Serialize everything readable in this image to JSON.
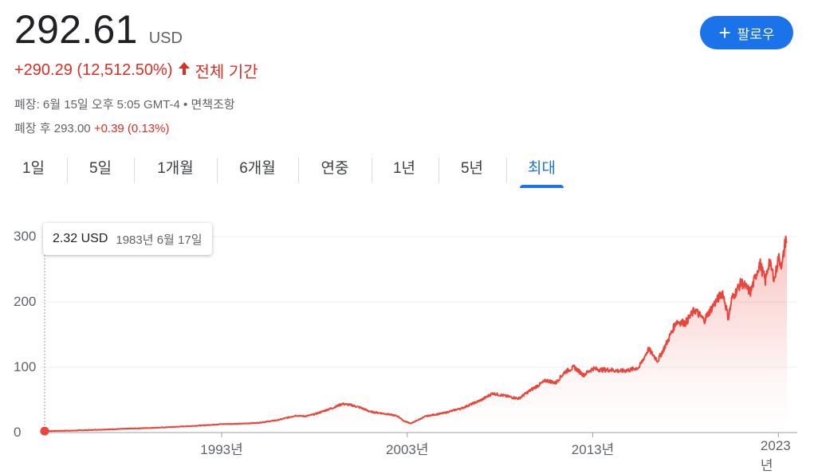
{
  "quote": {
    "price": "292.61",
    "currency": "USD",
    "change": "+290.29",
    "change_pct": "(12,512.50%)",
    "arrow": "up-arrow-icon",
    "period": "전체 기간",
    "close_info": "폐장: 6월 15일 오후 5:05 GMT-4",
    "separator": "•",
    "disclaimer": "면책조항",
    "after_hours_label": "폐장 후",
    "after_hours_price": "293.00",
    "after_hours_change": "+0.39 (0.13%)"
  },
  "follow_button": {
    "icon": "plus-icon",
    "label": "팔로우"
  },
  "tabs": [
    "1일",
    "5일",
    "1개월",
    "6개월",
    "연중",
    "1년",
    "5년",
    "최대"
  ],
  "active_tab": "최대",
  "tooltip": {
    "value": "2.32 USD",
    "date": "1983년 6월 17일"
  },
  "colors": {
    "line": "#e8453c",
    "accent": "#1a73e8",
    "negative_positive": "#d93025",
    "grid": "#eeeeee"
  },
  "chart_data": {
    "type": "area",
    "title": "",
    "xlabel": "",
    "ylabel": "",
    "ylim": [
      0,
      300
    ],
    "yticks": [
      "300",
      "200",
      "100",
      "0"
    ],
    "ytick_values": [
      300,
      200,
      100,
      0
    ],
    "xticks": [
      "1993년",
      "2003년",
      "2013년",
      "2023년"
    ],
    "xtick_values": [
      1993,
      2003,
      2013,
      2023
    ],
    "grid": true,
    "series": [
      {
        "x": [
          1983.46,
          1985,
          1987,
          1988,
          1990,
          1992,
          1993,
          1994,
          1995,
          1996,
          1997,
          1997.5,
          1998,
          1998.5,
          1999,
          1999.5,
          2000,
          2000.5,
          2001,
          2001.5,
          2002,
          2002.5,
          2002.8,
          2003.2,
          2004,
          2005,
          2006,
          2007,
          2007.6,
          2008.3,
          2009,
          2009.7,
          2010.5,
          2011,
          2011.5,
          2012,
          2012.5,
          2013,
          2013.5,
          2014,
          2014.5,
          2015,
          2015.5,
          2016,
          2016.5,
          2017,
          2017.5,
          2018,
          2018.5,
          2019,
          2019.5,
          2020,
          2020.2,
          2020.3,
          2020.5,
          2021,
          2021.5,
          2022,
          2022.3,
          2022.5,
          2022.8,
          2023,
          2023.2,
          2023.4,
          2023.46
        ],
        "y": [
          2.32,
          3,
          5,
          6,
          8,
          11,
          13,
          13.5,
          15,
          19,
          26,
          25,
          28,
          33,
          38,
          44,
          42,
          38,
          32,
          30,
          28,
          25,
          18,
          14,
          25,
          30,
          38,
          50,
          60,
          56,
          52,
          66,
          80,
          76,
          93,
          100,
          88,
          98,
          96,
          96,
          94,
          96,
          100,
          128,
          110,
          138,
          170,
          168,
          188,
          172,
          195,
          215,
          190,
          175,
          205,
          230,
          215,
          260,
          232,
          262,
          235,
          268,
          255,
          298,
          292.61
        ]
      }
    ]
  }
}
